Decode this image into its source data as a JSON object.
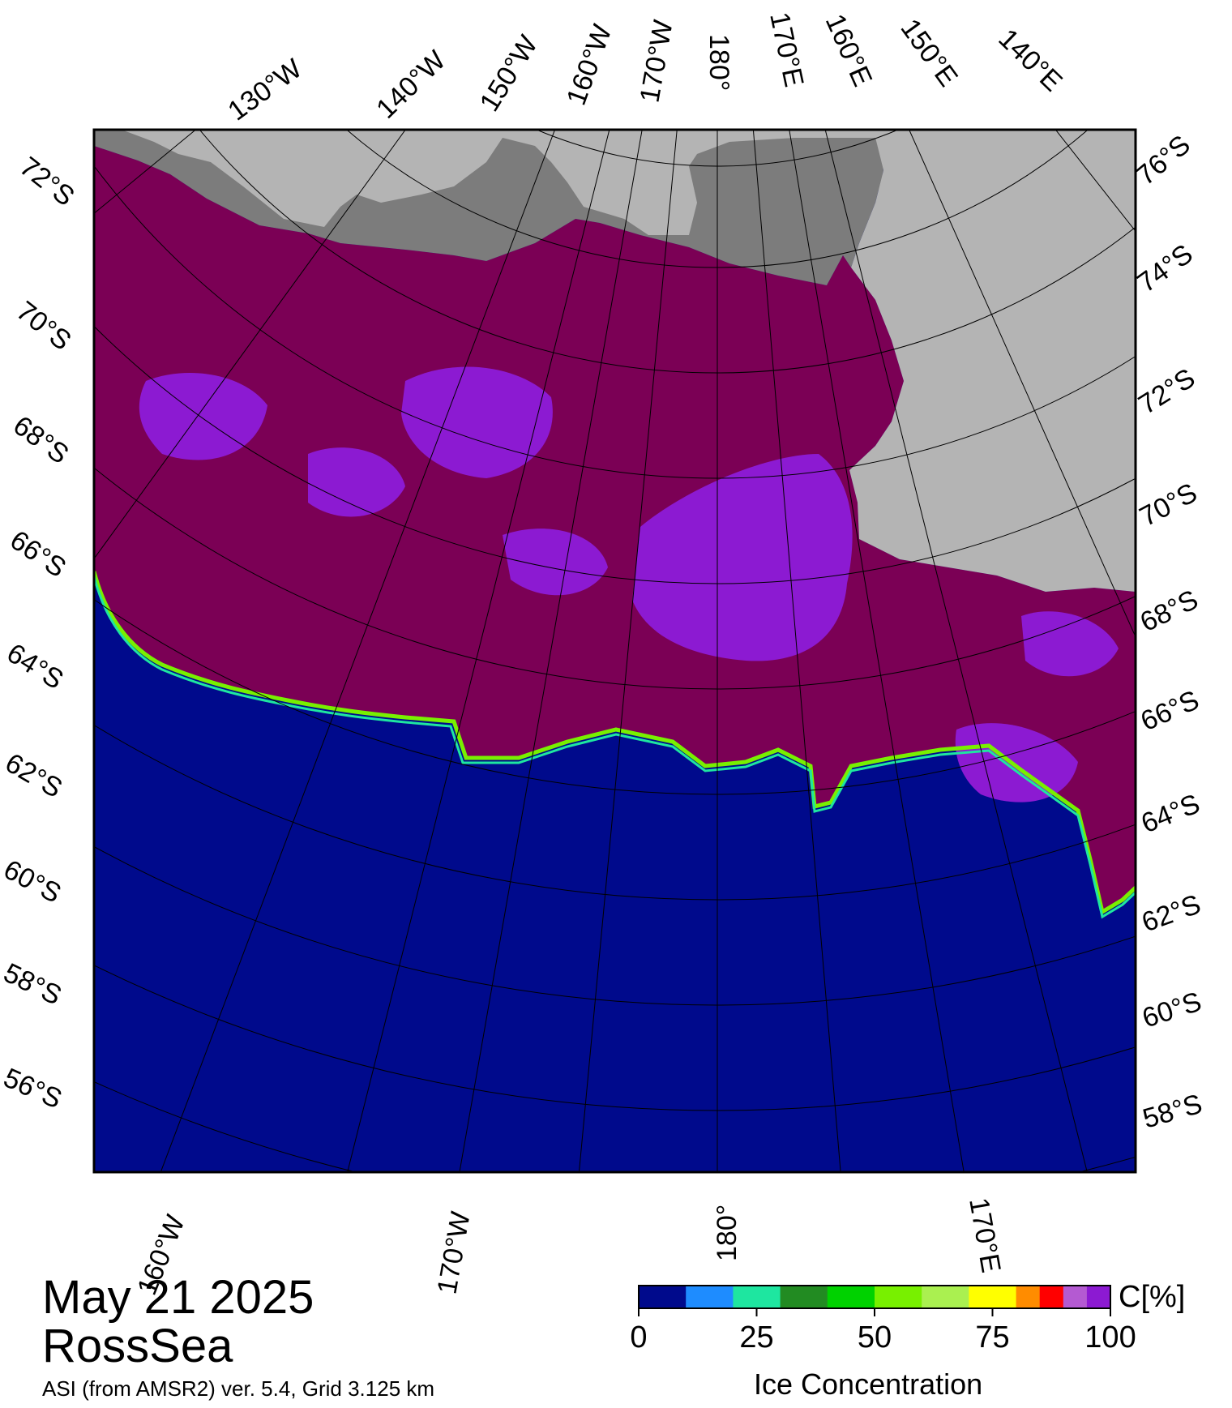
{
  "title": {
    "date": "May 21 2025",
    "region": "RossSea",
    "source": "ASI (from AMSR2) ver. 5.4,  Grid 3.125 km"
  },
  "map": {
    "projection": "polar stereographic (south)",
    "top_longitude_labels": [
      "130°W",
      "140°W",
      "150°W",
      "160°W",
      "170°W",
      "180°",
      "170°E",
      "160°E",
      "150°E",
      "140°E"
    ],
    "bottom_longitude_labels": [
      "160°W",
      "170°W",
      "180°",
      "170°E"
    ],
    "left_latitude_labels": [
      "72°S",
      "70°S",
      "68°S",
      "66°S",
      "64°S",
      "62°S",
      "60°S",
      "58°S",
      "56°S"
    ],
    "right_latitude_labels": [
      "76°S",
      "74°S",
      "72°S",
      "70°S",
      "68°S",
      "66°S",
      "64°S",
      "62°S",
      "60°S",
      "58°S"
    ],
    "colors": {
      "open_water": "#000a8c",
      "high_concentration_ice": "#7b0055",
      "ice_90_100": "#8c1ad2",
      "land": "#b4b4b4",
      "ice_shelf": "#7c7c7c",
      "frame": "#000000"
    }
  },
  "colorbar": {
    "unit_label": "C[%]",
    "title": "Ice Concentration",
    "tick_labels": [
      "0",
      "25",
      "50",
      "75",
      "100"
    ],
    "bins": [
      {
        "from": 0,
        "to": 10,
        "color": "#000a8c"
      },
      {
        "from": 10,
        "to": 20,
        "color": "#1e8cff"
      },
      {
        "from": 20,
        "to": 30,
        "color": "#1ee6a0"
      },
      {
        "from": 30,
        "to": 40,
        "color": "#228b22"
      },
      {
        "from": 40,
        "to": 50,
        "color": "#00d200"
      },
      {
        "from": 50,
        "to": 60,
        "color": "#78f000"
      },
      {
        "from": 60,
        "to": 70,
        "color": "#aaf050"
      },
      {
        "from": 70,
        "to": 80,
        "color": "#ffff00"
      },
      {
        "from": 80,
        "to": 85,
        "color": "#ff8c00"
      },
      {
        "from": 85,
        "to": 90,
        "color": "#ff0000"
      },
      {
        "from": 90,
        "to": 95,
        "color": "#b45ad2"
      },
      {
        "from": 95,
        "to": 100,
        "color": "#8c1ad2"
      }
    ]
  }
}
